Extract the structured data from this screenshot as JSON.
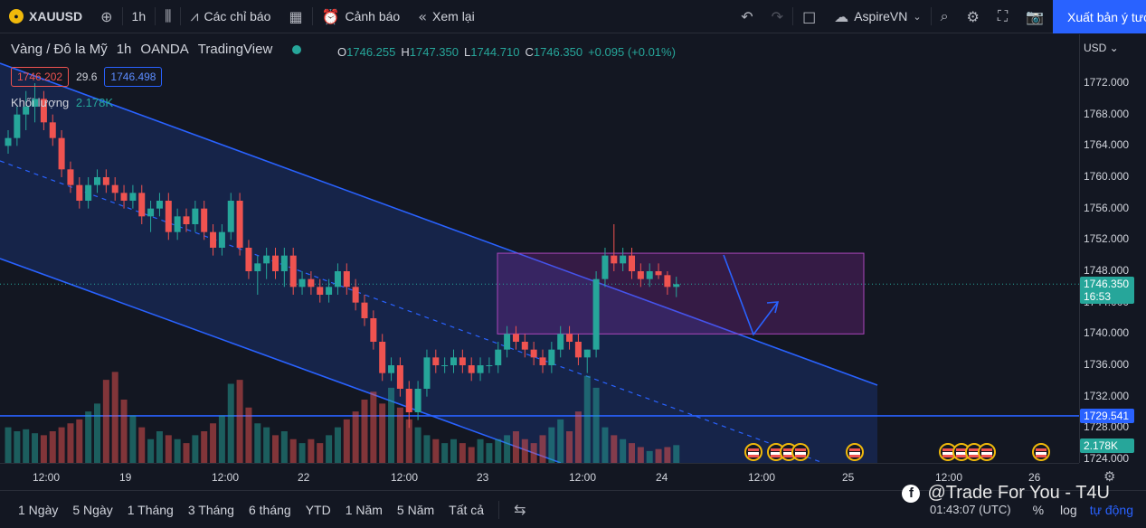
{
  "toolbar": {
    "symbol": "XAUUSD",
    "interval": "1h",
    "indicators": "Các chỉ báo",
    "alerts": "Cảnh báo",
    "replay": "Xem lại",
    "layout_name": "AspireVN",
    "publish": "Xuất bản ý tưởng"
  },
  "legend": {
    "title": "Vàng / Đô la Mỹ",
    "interval": "1h",
    "broker": "OANDA",
    "source": "TradingView",
    "o_label": "O",
    "o": "1746.255",
    "h_label": "H",
    "h": "1747.350",
    "l_label": "L",
    "l": "1744.710",
    "c_label": "C",
    "c": "1746.350",
    "change": "+0.095 (+0.01%)",
    "bid": "1746.202",
    "spread": "29.6",
    "ask": "1746.498",
    "volume_label": "Khối lượng",
    "volume_value": "2.178K"
  },
  "price_scale": {
    "currency": "USD",
    "ticks": [
      "1772.000",
      "1768.000",
      "1764.000",
      "1760.000",
      "1756.000",
      "1752.000",
      "1748.000",
      "1744.000",
      "1740.000",
      "1736.000",
      "1732.000",
      "1728.000",
      "1724.000"
    ],
    "current_price": "1746.350",
    "countdown": "16:53",
    "level_price": "1729.541",
    "volume_tag": "2.178K"
  },
  "time_axis": {
    "labels": [
      "12:00",
      "19",
      "12:00",
      "22",
      "12:00",
      "23",
      "12:00",
      "24",
      "12:00",
      "25",
      "12:00",
      "26"
    ]
  },
  "bottom_bar": {
    "ranges": [
      "1 Ngày",
      "5 Ngày",
      "1 Tháng",
      "3 Tháng",
      "6 tháng",
      "YTD",
      "1 Năm",
      "5 Năm",
      "Tất cả"
    ],
    "clock": "01:43:07 (UTC)",
    "percent": "%",
    "log": "log",
    "auto": "tự động"
  },
  "watermark": "@Trade For You - T4U",
  "colors": {
    "up": "#26a69a",
    "down": "#ef5350",
    "accent": "#2962ff",
    "channel": "#2962ff",
    "box": "#9c27b0"
  },
  "chart_data": {
    "type": "candlestick",
    "ylim": [
      1722,
      1776
    ],
    "level": 1729.541,
    "zone": {
      "from": 1740,
      "to": 1750.3
    },
    "candles": [
      [
        1764,
        1766,
        1763,
        1765
      ],
      [
        1765,
        1769,
        1764,
        1768
      ],
      [
        1768,
        1771,
        1766,
        1769
      ],
      [
        1769,
        1772,
        1767,
        1770
      ],
      [
        1770,
        1771,
        1766,
        1767
      ],
      [
        1767,
        1768,
        1764,
        1765
      ],
      [
        1765,
        1766,
        1760,
        1761
      ],
      [
        1761,
        1762,
        1758,
        1759
      ],
      [
        1759,
        1760,
        1756,
        1757
      ],
      [
        1757,
        1760,
        1756,
        1759
      ],
      [
        1759,
        1761,
        1758,
        1760
      ],
      [
        1760,
        1761,
        1758,
        1759
      ],
      [
        1759,
        1760,
        1757,
        1758
      ],
      [
        1758,
        1759,
        1756,
        1757
      ],
      [
        1757,
        1759,
        1756,
        1758
      ],
      [
        1758,
        1759,
        1754,
        1755
      ],
      [
        1755,
        1757,
        1753,
        1756
      ],
      [
        1756,
        1758,
        1755,
        1757
      ],
      [
        1757,
        1758,
        1752,
        1753
      ],
      [
        1753,
        1756,
        1752,
        1755
      ],
      [
        1755,
        1756,
        1753,
        1754
      ],
      [
        1754,
        1757,
        1753,
        1756
      ],
      [
        1756,
        1757,
        1752,
        1753
      ],
      [
        1753,
        1754,
        1750,
        1751
      ],
      [
        1751,
        1754,
        1750,
        1753
      ],
      [
        1753,
        1758,
        1752,
        1757
      ],
      [
        1757,
        1758,
        1750,
        1751
      ],
      [
        1751,
        1752,
        1747,
        1748
      ],
      [
        1748,
        1750,
        1745,
        1749
      ],
      [
        1749,
        1751,
        1747,
        1750
      ],
      [
        1750,
        1751,
        1747,
        1748
      ],
      [
        1748,
        1751,
        1746,
        1750
      ],
      [
        1750,
        1751,
        1745,
        1746
      ],
      [
        1746,
        1748,
        1745,
        1747
      ],
      [
        1747,
        1748,
        1745,
        1746
      ],
      [
        1746,
        1747,
        1744,
        1745
      ],
      [
        1745,
        1747,
        1744,
        1746
      ],
      [
        1746,
        1749,
        1745,
        1748
      ],
      [
        1748,
        1749,
        1745,
        1746
      ],
      [
        1746,
        1747,
        1743,
        1744
      ],
      [
        1744,
        1745,
        1741,
        1742
      ],
      [
        1742,
        1743,
        1738,
        1739
      ],
      [
        1739,
        1740,
        1734,
        1735
      ],
      [
        1735,
        1737,
        1734,
        1736
      ],
      [
        1736,
        1737,
        1732,
        1733
      ],
      [
        1733,
        1734,
        1728,
        1730
      ],
      [
        1730,
        1734,
        1729,
        1733
      ],
      [
        1733,
        1738,
        1732,
        1737
      ],
      [
        1737,
        1738,
        1735,
        1736
      ],
      [
        1736,
        1737,
        1735,
        1736
      ],
      [
        1736,
        1738,
        1735,
        1737
      ],
      [
        1737,
        1738,
        1735,
        1736
      ],
      [
        1736,
        1737,
        1734,
        1735
      ],
      [
        1735,
        1737,
        1734,
        1736
      ],
      [
        1736,
        1737,
        1735,
        1736
      ],
      [
        1736,
        1739,
        1735,
        1738
      ],
      [
        1738,
        1741,
        1737,
        1740
      ],
      [
        1740,
        1741,
        1738,
        1739
      ],
      [
        1739,
        1740,
        1737,
        1738
      ],
      [
        1738,
        1739,
        1736,
        1737
      ],
      [
        1737,
        1738,
        1735,
        1736
      ],
      [
        1736,
        1739,
        1735,
        1738
      ],
      [
        1738,
        1741,
        1737,
        1740
      ],
      [
        1740,
        1741,
        1738,
        1739
      ],
      [
        1739,
        1740,
        1736,
        1737
      ],
      [
        1737,
        1738,
        1735,
        1738
      ],
      [
        1738,
        1748,
        1737,
        1747
      ],
      [
        1747,
        1751,
        1746,
        1750
      ],
      [
        1750,
        1754,
        1748,
        1749
      ],
      [
        1749,
        1751,
        1748,
        1750
      ],
      [
        1750,
        1751,
        1747,
        1748
      ],
      [
        1748,
        1749,
        1746,
        1747
      ],
      [
        1747,
        1749,
        1746,
        1748
      ],
      [
        1748,
        1749,
        1747,
        1747.5
      ],
      [
        1747.5,
        1748,
        1745,
        1746
      ],
      [
        1746,
        1747.3,
        1744.7,
        1746.35
      ]
    ],
    "volumes": [
      0.9,
      0.8,
      0.85,
      0.75,
      0.7,
      0.8,
      0.9,
      1.0,
      1.1,
      1.3,
      1.5,
      2.1,
      2.3,
      1.6,
      1.2,
      0.9,
      0.6,
      0.8,
      0.7,
      0.6,
      0.5,
      0.7,
      0.8,
      1.0,
      1.2,
      2.0,
      2.1,
      1.4,
      1.0,
      0.9,
      0.7,
      0.8,
      0.6,
      0.5,
      0.6,
      0.5,
      0.7,
      0.9,
      1.1,
      1.3,
      1.6,
      1.8,
      1.5,
      1.9,
      1.4,
      1.1,
      0.9,
      0.7,
      0.6,
      0.5,
      0.6,
      0.5,
      0.4,
      0.6,
      0.5,
      0.6,
      0.7,
      0.8,
      0.6,
      0.5,
      0.7,
      0.9,
      1.1,
      0.8,
      1.3,
      2.2,
      1.9,
      0.9,
      0.7,
      0.6,
      0.5,
      0.4,
      0.3,
      0.35,
      0.4,
      0.45
    ]
  }
}
